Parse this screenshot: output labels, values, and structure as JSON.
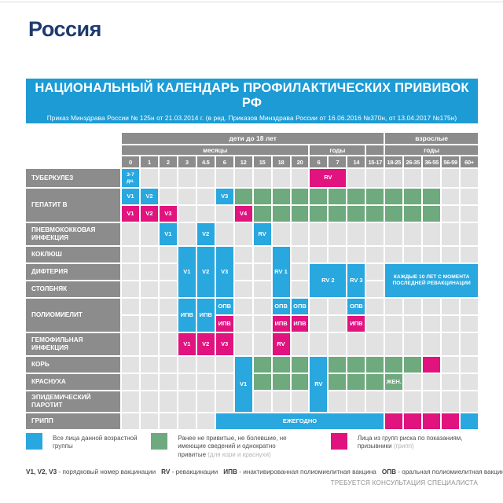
{
  "page": {
    "country_title": "Россия"
  },
  "banner": {
    "title": "НАЦИОНАЛЬНЫЙ КАЛЕНДАРЬ ПРОФИЛАКТИЧЕСКИХ ПРИВИВОК РФ",
    "subtitle": "Приказ Минздрава России № 125н от 21.03.2014 г.  (в ред. Приказов Минздрава России от 16.06.2016 №370н, от 13.04.2017 №175н)"
  },
  "colors": {
    "blue": "#29a7df",
    "green": "#6fa97e",
    "magenta": "#e0137f",
    "banner_blue": "#1d9bd5",
    "header_gray": "#8c8c8c",
    "cell_gray": "#e2e2e2",
    "title_navy": "#1e3a6e"
  },
  "chart_data": {
    "type": "table",
    "title": "НАЦИОНАЛЬНЫЙ КАЛЕНДАРЬ ПРОФИЛАКТИЧЕСКИХ ПРИВИВОК РФ",
    "age_groups": [
      {
        "label": "дети до 18 лет",
        "col": 1,
        "span": 14
      },
      {
        "label": "взрослые",
        "col": 15,
        "span": 5
      }
    ],
    "unit_groups": [
      {
        "label": "месяцы",
        "col": 1,
        "span": 10
      },
      {
        "label": "годы",
        "col": 11,
        "span": 3
      },
      {
        "label": "",
        "col": 14,
        "span": 1
      },
      {
        "label": "годы",
        "col": 15,
        "span": 5
      }
    ],
    "columns": [
      "0",
      "1",
      "2",
      "3",
      "4.5",
      "6",
      "12",
      "15",
      "18",
      "20",
      "6",
      "7",
      "14",
      "15-17",
      "18-25",
      "26-35",
      "36-55",
      "56-59",
      "60+"
    ],
    "rows": [
      {
        "label": "ТУБЕРКУЛЕЗ",
        "row": 1,
        "span": 1
      },
      {
        "label": "ГЕПАТИТ B",
        "row": 2,
        "span": 2
      },
      {
        "label": "ПНЕВМОКОККОВАЯ ИНФЕКЦИЯ",
        "row": 4,
        "span": 1
      },
      {
        "label": "КОКЛЮШ",
        "row": 5,
        "span": 1
      },
      {
        "label": "ДИФТЕРИЯ",
        "row": 6,
        "span": 1
      },
      {
        "label": "СТОЛБНЯК",
        "row": 7,
        "span": 1
      },
      {
        "label": "ПОЛИОМИЕЛИТ",
        "row": 8,
        "span": 2
      },
      {
        "label": "ГЕМОФИЛЬНАЯ ИНФЕКЦИЯ",
        "row": 10,
        "span": 1
      },
      {
        "label": "КОРЬ",
        "row": 11,
        "span": 1
      },
      {
        "label": "КРАСНУХА",
        "row": 12,
        "span": 1
      },
      {
        "label": "ЭПИДЕМИЧЕСКИЙ ПАРОТИТ",
        "row": 13,
        "span": 1
      },
      {
        "label": "ГРИПП",
        "row": 14,
        "span": 1
      }
    ],
    "cells": [
      {
        "r": 1,
        "c": 1,
        "color": "blue",
        "label": "3-7 дн.",
        "small": true
      },
      {
        "r": 1,
        "c": 11,
        "cs": 2,
        "color": "magenta",
        "label": "RV"
      },
      {
        "r": 2,
        "c": 1,
        "color": "blue",
        "label": "V1"
      },
      {
        "r": 2,
        "c": 2,
        "color": "blue",
        "label": "V2"
      },
      {
        "r": 2,
        "c": 6,
        "color": "blue",
        "label": "V3"
      },
      {
        "r": 2,
        "c": 7,
        "color": "green",
        "label": ""
      },
      {
        "r": 2,
        "c": 8,
        "color": "green",
        "label": ""
      },
      {
        "r": 2,
        "c": 9,
        "color": "green",
        "label": ""
      },
      {
        "r": 2,
        "c": 10,
        "color": "green",
        "label": ""
      },
      {
        "r": 2,
        "c": 11,
        "color": "green",
        "label": ""
      },
      {
        "r": 2,
        "c": 12,
        "color": "green",
        "label": ""
      },
      {
        "r": 2,
        "c": 13,
        "color": "green",
        "label": ""
      },
      {
        "r": 2,
        "c": 14,
        "color": "green",
        "label": ""
      },
      {
        "r": 2,
        "c": 15,
        "color": "green",
        "label": ""
      },
      {
        "r": 2,
        "c": 16,
        "color": "green",
        "label": ""
      },
      {
        "r": 2,
        "c": 17,
        "color": "green",
        "label": ""
      },
      {
        "r": 3,
        "c": 1,
        "color": "magenta",
        "label": "V1"
      },
      {
        "r": 3,
        "c": 2,
        "color": "magenta",
        "label": "V2"
      },
      {
        "r": 3,
        "c": 3,
        "color": "magenta",
        "label": "V3"
      },
      {
        "r": 3,
        "c": 7,
        "color": "magenta",
        "label": "V4"
      },
      {
        "r": 3,
        "c": 8,
        "color": "green",
        "label": ""
      },
      {
        "r": 3,
        "c": 9,
        "color": "green",
        "label": ""
      },
      {
        "r": 3,
        "c": 10,
        "color": "green",
        "label": ""
      },
      {
        "r": 3,
        "c": 11,
        "color": "green",
        "label": ""
      },
      {
        "r": 3,
        "c": 12,
        "color": "green",
        "label": ""
      },
      {
        "r": 3,
        "c": 13,
        "color": "green",
        "label": ""
      },
      {
        "r": 3,
        "c": 14,
        "color": "green",
        "label": ""
      },
      {
        "r": 3,
        "c": 15,
        "color": "green",
        "label": ""
      },
      {
        "r": 3,
        "c": 16,
        "color": "green",
        "label": ""
      },
      {
        "r": 3,
        "c": 17,
        "color": "green",
        "label": ""
      },
      {
        "r": 4,
        "c": 3,
        "color": "blue",
        "label": "V1"
      },
      {
        "r": 4,
        "c": 5,
        "color": "blue",
        "label": "V2"
      },
      {
        "r": 4,
        "c": 8,
        "color": "blue",
        "label": "RV"
      },
      {
        "r": 5,
        "c": 4,
        "rs": 3,
        "color": "blue",
        "label": "V1"
      },
      {
        "r": 5,
        "c": 5,
        "rs": 3,
        "color": "blue",
        "label": "V2"
      },
      {
        "r": 5,
        "c": 6,
        "rs": 3,
        "color": "blue",
        "label": "V3"
      },
      {
        "r": 5,
        "c": 9,
        "rs": 3,
        "color": "blue",
        "label": "RV 1"
      },
      {
        "r": 6,
        "c": 11,
        "rs": 2,
        "cs": 2,
        "color": "blue",
        "label": "RV 2"
      },
      {
        "r": 6,
        "c": 13,
        "rs": 2,
        "color": "blue",
        "label": "RV 3"
      },
      {
        "r": 6,
        "c": 15,
        "rs": 2,
        "cs": 5,
        "color": "blue",
        "label": "КАЖДЫЕ 10 ЛЕТ С МОМЕНТА ПОСЛЕДНЕЙ РЕВАКЦИНАЦИИ",
        "small": true
      },
      {
        "r": 8,
        "c": 4,
        "rs": 2,
        "color": "blue",
        "label": "ИПВ"
      },
      {
        "r": 8,
        "c": 5,
        "rs": 2,
        "color": "blue",
        "label": "ИПВ"
      },
      {
        "r": 8,
        "c": 6,
        "color": "blue",
        "label": "ОПВ"
      },
      {
        "r": 9,
        "c": 6,
        "color": "magenta",
        "label": "ИПВ"
      },
      {
        "r": 8,
        "c": 9,
        "color": "blue",
        "label": "ОПВ"
      },
      {
        "r": 9,
        "c": 9,
        "color": "magenta",
        "label": "ИПВ"
      },
      {
        "r": 8,
        "c": 10,
        "color": "blue",
        "label": "ОПВ"
      },
      {
        "r": 9,
        "c": 10,
        "color": "magenta",
        "label": "ИПВ"
      },
      {
        "r": 8,
        "c": 13,
        "color": "blue",
        "label": "ОПВ"
      },
      {
        "r": 9,
        "c": 13,
        "color": "magenta",
        "label": "ИПВ"
      },
      {
        "r": 10,
        "c": 4,
        "color": "magenta",
        "label": "V1"
      },
      {
        "r": 10,
        "c": 5,
        "color": "magenta",
        "label": "V2"
      },
      {
        "r": 10,
        "c": 6,
        "color": "magenta",
        "label": "V3"
      },
      {
        "r": 10,
        "c": 9,
        "color": "magenta",
        "label": "RV"
      },
      {
        "r": 11,
        "c": 7,
        "rs": 3,
        "color": "blue",
        "label": "V1"
      },
      {
        "r": 11,
        "c": 11,
        "rs": 3,
        "color": "blue",
        "label": "RV"
      },
      {
        "r": 11,
        "c": 8,
        "color": "green",
        "label": ""
      },
      {
        "r": 11,
        "c": 9,
        "color": "green",
        "label": ""
      },
      {
        "r": 11,
        "c": 10,
        "color": "green",
        "label": ""
      },
      {
        "r": 11,
        "c": 12,
        "color": "green",
        "label": ""
      },
      {
        "r": 11,
        "c": 13,
        "color": "green",
        "label": ""
      },
      {
        "r": 11,
        "c": 14,
        "color": "green",
        "label": ""
      },
      {
        "r": 11,
        "c": 15,
        "color": "green",
        "label": ""
      },
      {
        "r": 11,
        "c": 16,
        "color": "green",
        "label": ""
      },
      {
        "r": 11,
        "c": 17,
        "color": "magenta",
        "label": ""
      },
      {
        "r": 12,
        "c": 8,
        "color": "green",
        "label": ""
      },
      {
        "r": 12,
        "c": 9,
        "color": "green",
        "label": ""
      },
      {
        "r": 12,
        "c": 10,
        "color": "green",
        "label": ""
      },
      {
        "r": 12,
        "c": 12,
        "color": "green",
        "label": ""
      },
      {
        "r": 12,
        "c": 13,
        "color": "green",
        "label": ""
      },
      {
        "r": 12,
        "c": 14,
        "color": "green",
        "label": ""
      },
      {
        "r": 12,
        "c": 15,
        "color": "green",
        "label": "ЖЕН."
      },
      {
        "r": 14,
        "c": 6,
        "cs": 9,
        "color": "blue",
        "label": "ЕЖЕГОДНО"
      },
      {
        "r": 14,
        "c": 15,
        "color": "magenta",
        "label": ""
      },
      {
        "r": 14,
        "c": 16,
        "color": "magenta",
        "label": ""
      },
      {
        "r": 14,
        "c": 17,
        "color": "magenta",
        "label": ""
      },
      {
        "r": 14,
        "c": 18,
        "color": "magenta",
        "label": ""
      },
      {
        "r": 14,
        "c": 19,
        "color": "blue",
        "label": ""
      }
    ]
  },
  "legend": {
    "items": [
      {
        "color": "blue",
        "text": "Все лица данной возрастной группы",
        "note": ""
      },
      {
        "color": "green",
        "text": "Ранее не привитые, не болевшие, не имеющие сведений и однократно привитые",
        "note": "(для кори и краснухи)"
      },
      {
        "color": "magenta",
        "text": "Лица из групп риска по показаниям, призывники",
        "note": "(грипп)"
      }
    ]
  },
  "abbreviations": {
    "separator": "-",
    "items": [
      {
        "abbr": "V1, V2, V3",
        "desc": "порядковый номер вакцинации"
      },
      {
        "abbr": "RV",
        "desc": "ревакцинации"
      },
      {
        "abbr": "ИПВ",
        "desc": "инактивированная полиомиелитная вакцина"
      },
      {
        "abbr": "ОПВ",
        "desc": "оральная полиомиелитная вакцина"
      }
    ]
  },
  "footer": {
    "note": "ТРЕБУЕТСЯ КОНСУЛЬТАЦИЯ СПЕЦИАЛИСТА"
  }
}
